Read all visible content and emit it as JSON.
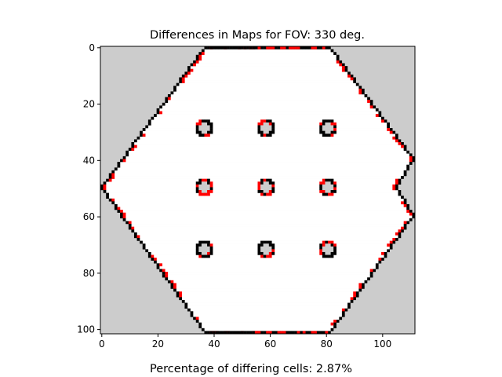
{
  "chart_data": {
    "type": "heatmap",
    "title": "Differences in Maps for FOV: 330 deg.",
    "xlabel": "Percentage of differing cells: 2.87%",
    "ylabel": "",
    "xlim": [
      0,
      112
    ],
    "ylim": [
      102,
      0
    ],
    "xticks": [
      0,
      20,
      40,
      60,
      80,
      100
    ],
    "yticks": [
      0,
      20,
      40,
      60,
      80,
      100
    ],
    "grid": false,
    "colors": {
      "unknown": "#cccccc",
      "free": "#ffffff",
      "occupied": "#000000",
      "differing": "#ff0000"
    },
    "map": {
      "outline": [
        [
          37,
          0
        ],
        [
          82,
          0
        ],
        [
          112,
          40
        ],
        [
          106,
          50
        ],
        [
          112,
          60
        ],
        [
          82,
          102
        ],
        [
          37,
          102
        ],
        [
          0,
          50
        ]
      ],
      "obstacles": [
        {
          "cx": 37,
          "cy": 29,
          "r": 2.5
        },
        {
          "cx": 59,
          "cy": 29,
          "r": 2.5
        },
        {
          "cx": 81,
          "cy": 29,
          "r": 2.5
        },
        {
          "cx": 37,
          "cy": 50,
          "r": 2.5
        },
        {
          "cx": 59,
          "cy": 50,
          "r": 2.5
        },
        {
          "cx": 81,
          "cy": 50,
          "r": 2.5
        },
        {
          "cx": 37,
          "cy": 72,
          "r": 2.5
        },
        {
          "cx": 59,
          "cy": 72,
          "r": 2.5
        },
        {
          "cx": 81,
          "cy": 72,
          "r": 2.5
        }
      ],
      "differing_percentage": 2.87
    }
  }
}
